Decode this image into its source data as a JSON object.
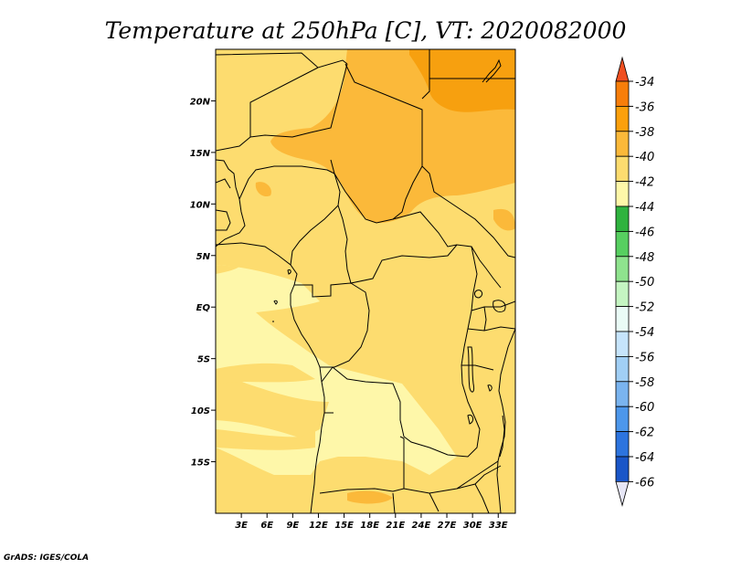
{
  "title": "Temperature at 250hPa [C], VT: 2020082000",
  "credit": "GrADS: IGES/COLA",
  "map": {
    "lon_range": [
      0,
      35
    ],
    "lat_range": [
      -20,
      25
    ],
    "x_ticks": [
      "3E",
      "6E",
      "9E",
      "12E",
      "15E",
      "18E",
      "21E",
      "24E",
      "27E",
      "30E",
      "33E"
    ],
    "x_tick_values": [
      3,
      6,
      9,
      12,
      15,
      18,
      21,
      24,
      27,
      30,
      33
    ],
    "y_ticks": [
      "20N",
      "15N",
      "10N",
      "5N",
      "EQ",
      "5S",
      "10S",
      "15S"
    ],
    "y_tick_values": [
      20,
      15,
      10,
      5,
      0,
      -5,
      -10,
      -15
    ]
  },
  "colorbar": {
    "labels": [
      "-34",
      "-36",
      "-38",
      "-40",
      "-42",
      "-44",
      "-46",
      "-48",
      "-50",
      "-52",
      "-54",
      "-56",
      "-58",
      "-60",
      "-62",
      "-64",
      "-66"
    ],
    "colors": [
      "#f04f20",
      "#f77e0a",
      "#fba00c",
      "#fbb93a",
      "#fddc6f",
      "#fef7a9",
      "#2fb33f",
      "#57cf60",
      "#8fe38e",
      "#c5f5c2",
      "#eafbf6",
      "#c6e4fb",
      "#a1cff5",
      "#7ab4ef",
      "#4d97eb",
      "#2d74de",
      "#1a56c8",
      "#123aa8",
      "#101b6e",
      "#e6e6f6"
    ]
  },
  "field_colors": {
    "c38": "#f7a00f",
    "c40": "#fbb93a",
    "c42": "#fddc6f",
    "c44": "#fef7a9"
  }
}
